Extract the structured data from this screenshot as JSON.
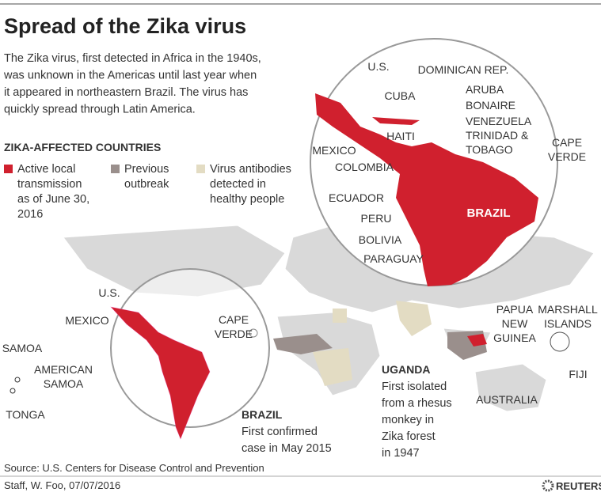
{
  "header": {
    "title": "Spread of the Zika virus",
    "intro": [
      "The Zika virus, first detected in Africa in the 1940s,",
      "was unknown in the Americas until last year when",
      "it appeared in northeastern Brazil. The virus has",
      "quickly spread through Latin America."
    ]
  },
  "legend": {
    "title": "ZIKA-AFFECTED COUNTRIES",
    "items": [
      {
        "lines": [
          "Active local",
          "transmission",
          "as of June 30,",
          "2016"
        ],
        "color": "#d0202e"
      },
      {
        "lines": [
          "Previous",
          "outbreak"
        ],
        "color": "#9a8f8c"
      },
      {
        "lines": [
          "Virus antibodies",
          "detected in",
          "healthy people"
        ],
        "color": "#e3dcc3"
      }
    ]
  },
  "inset_labels": [
    [
      "U.S."
    ],
    [
      "DOMINICAN REP."
    ],
    [
      "CUBA"
    ],
    [
      "ARUBA"
    ],
    [
      "BONAIRE"
    ],
    [
      "VENEZUELA"
    ],
    [
      "TRINIDAD &",
      "TOBAGO"
    ],
    [
      "HAITI"
    ],
    [
      "MEXICO"
    ],
    [
      "COLOMBIA"
    ],
    [
      "CAPE",
      "VERDE"
    ],
    [
      "ECUADOR"
    ],
    [
      "BRAZIL"
    ],
    [
      "PERU"
    ],
    [
      "BOLIVIA"
    ],
    [
      "PARAGUAY"
    ]
  ],
  "world_labels": [
    [
      "U.S."
    ],
    [
      "MEXICO"
    ],
    [
      "CAPE",
      "VERDE"
    ],
    [
      "SAMOA"
    ],
    [
      "AMERICAN",
      "SAMOA"
    ],
    [
      "TONGA"
    ],
    [
      "PAPUA",
      "NEW",
      "GUINEA"
    ],
    [
      "MARSHALL",
      "ISLANDS"
    ],
    [
      "FIJI"
    ],
    [
      "AUSTRALIA"
    ]
  ],
  "callouts": [
    {
      "title": "BRAZIL",
      "lines": [
        "First confirmed",
        "case in May 2015"
      ]
    },
    {
      "title": "UGANDA",
      "lines": [
        "First isolated",
        "from a rhesus",
        "monkey in",
        "Zika forest",
        "in 1947"
      ]
    }
  ],
  "footer": {
    "source": "Source: U.S. Centers for Disease Control and Prevention",
    "credit": "Staff, W. Foo, 07/07/2016",
    "logo": "REUTERS"
  }
}
